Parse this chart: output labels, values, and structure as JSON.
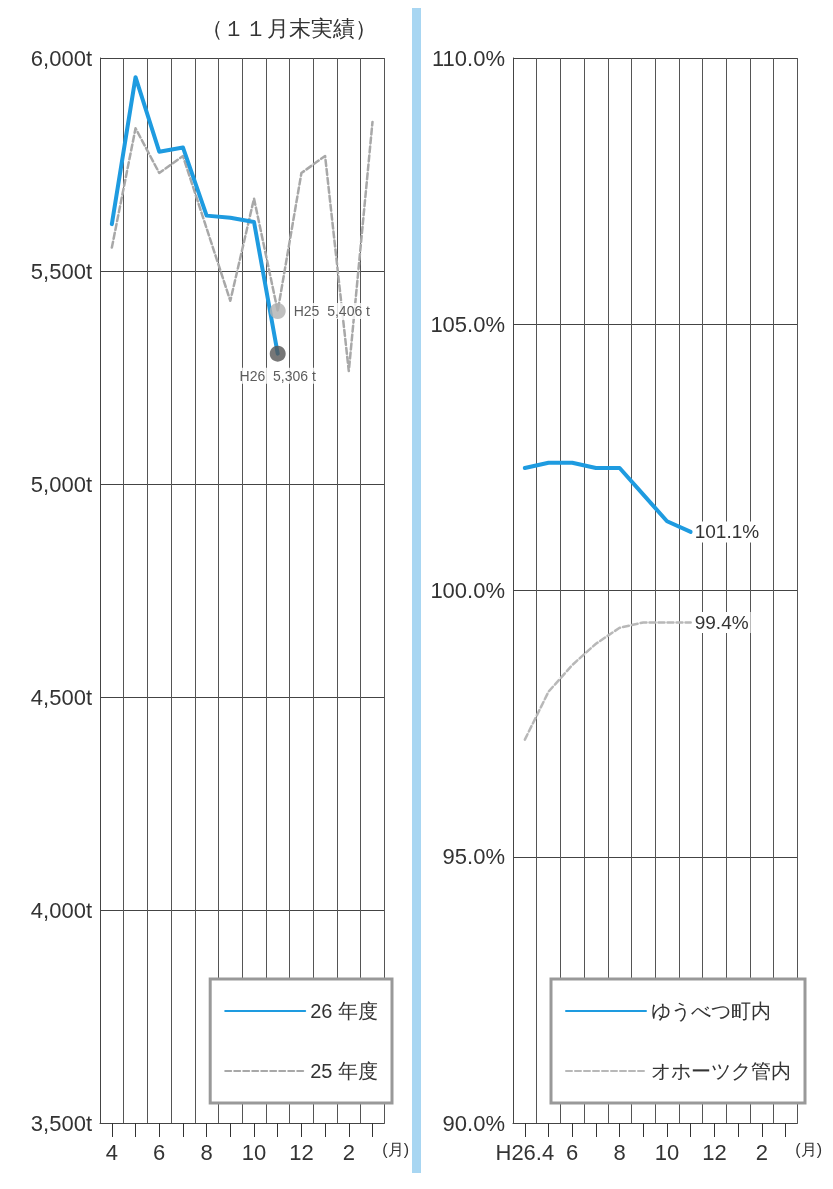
{
  "chart_data": [
    {
      "type": "line",
      "title": "（１１月末実績）",
      "categories": [
        "4",
        null,
        "6",
        null,
        "8",
        null,
        "10",
        null,
        "12",
        null,
        "2",
        null
      ],
      "xlabel": "(月)",
      "series": [
        {
          "name": "26 年度",
          "color": "#1e9be0",
          "line_style": "solid",
          "values": [
            5610,
            5955,
            5780,
            5790,
            5630,
            5625,
            5615,
            5306,
            null,
            null,
            null,
            null
          ]
        },
        {
          "name": "25 年度",
          "color": "#a8a8a8",
          "line_style": "dashed",
          "values": [
            5555,
            5835,
            5730,
            5770,
            5600,
            5430,
            5670,
            5406,
            5730,
            5770,
            5265,
            5850
          ]
        }
      ],
      "annotations": [
        "H26  5,306 t",
        "H25  5,406 t"
      ],
      "ylim": [
        3500,
        6000
      ],
      "yticks": [
        {
          "value": 3500,
          "label": "3,500t"
        },
        {
          "value": 4000,
          "label": "4,000t"
        },
        {
          "value": 4500,
          "label": "4,500t"
        },
        {
          "value": 5000,
          "label": "5,000t"
        },
        {
          "value": 5500,
          "label": "5,500t"
        },
        {
          "value": 6000,
          "label": "6,000t"
        }
      ],
      "grid": true,
      "legend": "bottom right",
      "marker": "none"
    },
    {
      "type": "line",
      "categories": [
        "H26.4",
        null,
        "6",
        null,
        "8",
        null,
        "10",
        null,
        "12",
        null,
        "2",
        null
      ],
      "xlabel": "(月)",
      "series": [
        {
          "name": "ゆうべつ町内",
          "color": "#1e9be0",
          "line_style": "solid",
          "values": [
            102.3,
            102.4,
            102.4,
            102.3,
            102.3,
            101.8,
            101.3,
            101.1,
            null,
            null,
            null,
            null
          ],
          "value_labels": [
            null,
            null,
            null,
            null,
            null,
            null,
            null,
            "101.1%",
            null,
            null,
            null,
            null
          ]
        },
        {
          "name": "オホーツク管内",
          "color": "#b8b8b8",
          "line_style": "dashed",
          "values": [
            97.2,
            98.1,
            98.6,
            99.0,
            99.3,
            99.4,
            99.4,
            99.4,
            null,
            null,
            null,
            null
          ],
          "value_labels": [
            null,
            null,
            null,
            null,
            null,
            null,
            null,
            "99.4%",
            null,
            null,
            null,
            null
          ]
        }
      ],
      "ylim": [
        90,
        110
      ],
      "yticks": [
        {
          "value": 90,
          "label": "90.0%"
        },
        {
          "value": 95,
          "label": "95.0%"
        },
        {
          "value": 100,
          "label": "100.0%"
        },
        {
          "value": 105,
          "label": "105.0%"
        },
        {
          "value": 110,
          "label": "110.0%"
        }
      ],
      "grid": true,
      "legend": "bottom",
      "marker": "none"
    }
  ]
}
